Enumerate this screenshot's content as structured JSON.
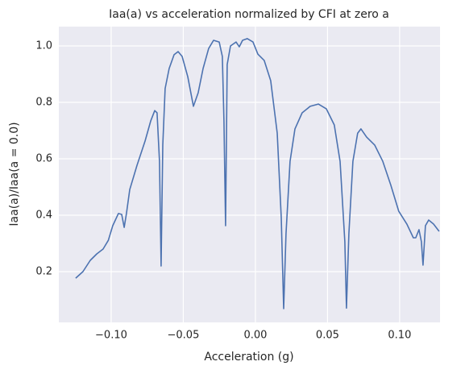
{
  "chart_data": {
    "type": "line",
    "title": "Iaa(a) vs acceleration normalized by CFI at zero a",
    "xlabel": "Acceleration (g)",
    "ylabel": "Iaa(a)/Iaa(a = 0.0)",
    "xlim": [
      -0.1363,
      0.128
    ],
    "ylim": [
      0.02,
      1.0686
    ],
    "xticks": [
      {
        "value": -0.1,
        "label": "−0.10"
      },
      {
        "value": -0.05,
        "label": "−0.05"
      },
      {
        "value": 0,
        "label": "0.00"
      },
      0.05,
      {
        "value": 0.1,
        "label": "0.10"
      }
    ],
    "yticks": [
      0.2,
      0.4,
      0.6,
      0.8,
      {
        "value": 1,
        "label": "1.0"
      }
    ],
    "grid": true,
    "background": "#eaeaf2",
    "series": [
      {
        "color": "#4c72b0",
        "x": [
          -0.1246,
          -0.1196,
          -0.1145,
          -0.11,
          -0.1056,
          -0.102,
          -0.0989,
          -0.095,
          -0.0927,
          -0.091,
          -0.0894,
          -0.0871,
          -0.0821,
          -0.0765,
          -0.0726,
          -0.0698,
          -0.0682,
          -0.0665,
          -0.0654,
          -0.0642,
          -0.0626,
          -0.0598,
          -0.0564,
          -0.0536,
          -0.0508,
          -0.0469,
          -0.043,
          -0.0397,
          -0.0363,
          -0.0324,
          -0.029,
          -0.0251,
          -0.0229,
          -0.0218,
          -0.0207,
          -0.0196,
          -0.0173,
          -0.0134,
          -0.0112,
          -0.0089,
          -0.0056,
          -0.0017,
          0.0017,
          0.0061,
          0.0106,
          0.0151,
          0.0179,
          0.0196,
          0.0212,
          0.024,
          0.0274,
          0.0324,
          0.038,
          0.0436,
          0.0492,
          0.0547,
          0.0587,
          0.062,
          0.0631,
          0.0648,
          0.0676,
          0.0709,
          0.0732,
          0.0771,
          0.0827,
          0.0883,
          0.0939,
          0.0994,
          0.105,
          0.1095,
          0.1112,
          0.1134,
          0.1151,
          0.1162,
          0.1179,
          0.1201,
          0.1235,
          0.1274
        ],
        "values": [
          0.177,
          0.2,
          0.24,
          0.263,
          0.28,
          0.311,
          0.363,
          0.406,
          0.403,
          0.357,
          0.406,
          0.491,
          0.577,
          0.663,
          0.734,
          0.771,
          0.763,
          0.591,
          0.22,
          0.649,
          0.849,
          0.92,
          0.969,
          0.98,
          0.963,
          0.891,
          0.786,
          0.834,
          0.92,
          0.991,
          1.02,
          1.014,
          0.963,
          0.734,
          0.363,
          0.934,
          1.0,
          1.014,
          0.997,
          1.02,
          1.026,
          1.014,
          0.971,
          0.949,
          0.877,
          0.691,
          0.391,
          0.069,
          0.334,
          0.591,
          0.706,
          0.763,
          0.786,
          0.794,
          0.777,
          0.72,
          0.591,
          0.306,
          0.071,
          0.334,
          0.591,
          0.691,
          0.706,
          0.677,
          0.649,
          0.591,
          0.506,
          0.414,
          0.369,
          0.32,
          0.32,
          0.349,
          0.306,
          0.223,
          0.363,
          0.383,
          0.369,
          0.343
        ]
      }
    ]
  }
}
